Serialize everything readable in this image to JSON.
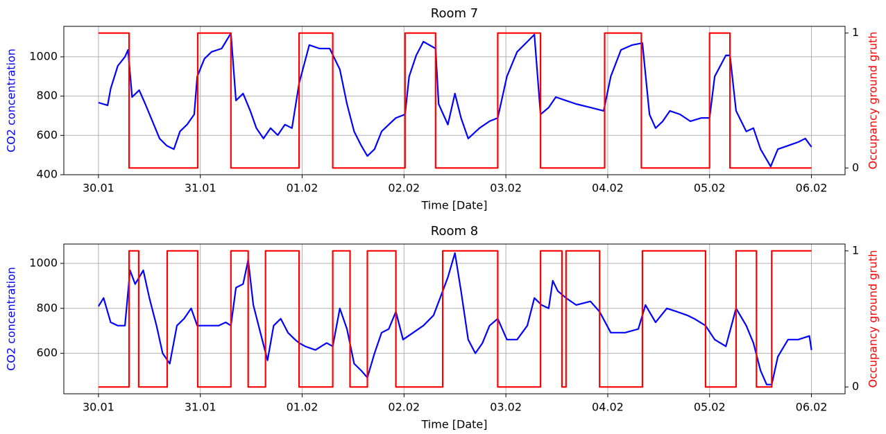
{
  "chart_data": [
    {
      "type": "line",
      "title": "Room 7",
      "x_label": "Time [Date]",
      "y_label": "CO2 concentration",
      "y2_label": "Occupancy ground gruth",
      "grid": true,
      "xlim": [
        -0.34,
        7.33
      ],
      "xticks": [
        {
          "value": 0,
          "label": "30.01"
        },
        {
          "value": 1,
          "label": "31.01"
        },
        {
          "value": 2,
          "label": "01.02"
        },
        {
          "value": 3,
          "label": "02.02"
        },
        {
          "value": 4,
          "label": "03.02"
        },
        {
          "value": 5,
          "label": "04.02"
        },
        {
          "value": 6,
          "label": "05.02"
        },
        {
          "value": 7,
          "label": "06.02"
        }
      ],
      "ylim": [
        400,
        1155
      ],
      "yticks": [
        400,
        600,
        800,
        1000
      ],
      "y2lim": [
        -0.05,
        1.05
      ],
      "y2ticks": [
        0,
        1
      ],
      "series": [
        {
          "color": "#0000ff",
          "x": [
            0,
            0.09,
            0.12,
            0.19,
            0.26,
            0.29,
            0.33,
            0.4,
            0.46,
            0.53,
            0.6,
            0.67,
            0.74,
            0.8,
            0.87,
            0.94,
            0.97,
            1.04,
            1.11,
            1.21,
            1.3,
            1.35,
            1.42,
            1.49,
            1.55,
            1.62,
            1.69,
            1.76,
            1.83,
            1.9,
            1.97,
            2.07,
            2.17,
            2.27,
            2.37,
            2.44,
            2.51,
            2.58,
            2.64,
            2.71,
            2.78,
            2.85,
            2.92,
            3.01,
            3.05,
            3.12,
            3.19,
            3.31,
            3.34,
            3.43,
            3.5,
            3.56,
            3.63,
            3.74,
            3.84,
            3.92,
            4.01,
            4.11,
            4.21,
            4.28,
            4.34,
            4.42,
            4.49,
            4.59,
            4.69,
            4.83,
            4.96,
            5.03,
            5.13,
            5.24,
            5.34,
            5.41,
            5.47,
            5.54,
            5.61,
            5.71,
            5.81,
            5.92,
            6.0,
            6.05,
            6.16,
            6.2,
            6.26,
            6.36,
            6.43,
            6.5,
            6.6,
            6.67,
            6.77,
            6.87,
            6.94,
            7.0
          ],
          "values": [
            767,
            753,
            838,
            954,
            1000,
            1035,
            795,
            830,
            760,
            672,
            584,
            548,
            530,
            620,
            655,
            707,
            900,
            990,
            1025,
            1042,
            1120,
            778,
            813,
            725,
            637,
            584,
            637,
            601,
            655,
            637,
            865,
            1060,
            1042,
            1042,
            936,
            760,
            620,
            548,
            495,
            530,
            620,
            655,
            689,
            707,
            900,
            1007,
            1077,
            1042,
            760,
            655,
            813,
            689,
            584,
            637,
            672,
            689,
            900,
            1025,
            1077,
            1113,
            707,
            742,
            795,
            777,
            760,
            742,
            725,
            900,
            1035,
            1060,
            1070,
            707,
            637,
            672,
            725,
            707,
            672,
            689,
            689,
            900,
            1007,
            1007,
            725,
            620,
            637,
            530,
            442,
            530,
            548,
            566,
            584,
            541
          ]
        },
        {
          "color": "#ff0000",
          "axis": "y2",
          "x": [
            0,
            0.3,
            0.3,
            0.975,
            0.975,
            1.3,
            1.3,
            1.97,
            1.97,
            2.3,
            2.3,
            3.01,
            3.01,
            3.31,
            3.31,
            3.92,
            3.92,
            4.34,
            4.34,
            4.97,
            4.97,
            5.33,
            5.33,
            6.0,
            6.0,
            6.2,
            6.2,
            7.0
          ],
          "values": [
            1,
            1,
            0,
            0,
            1,
            1,
            0,
            0,
            1,
            1,
            0,
            0,
            1,
            1,
            0,
            0,
            1,
            1,
            0,
            0,
            1,
            1,
            0,
            0,
            1,
            1,
            0,
            0
          ]
        }
      ]
    },
    {
      "type": "line",
      "title": "Room 8",
      "x_label": "Time [Date]",
      "y_label": "CO2 concentration",
      "y2_label": "Occupancy ground gruth",
      "grid": true,
      "xlim": [
        -0.34,
        7.33
      ],
      "xticks": [
        {
          "value": 0,
          "label": "30.01"
        },
        {
          "value": 1,
          "label": "31.01"
        },
        {
          "value": 2,
          "label": "01.02"
        },
        {
          "value": 3,
          "label": "02.02"
        },
        {
          "value": 4,
          "label": "03.02"
        },
        {
          "value": 5,
          "label": "04.02"
        },
        {
          "value": 6,
          "label": "05.02"
        },
        {
          "value": 7,
          "label": "06.02"
        }
      ],
      "ylim": [
        420,
        1086
      ],
      "yticks": [
        600,
        800,
        1000
      ],
      "y2lim": [
        -0.05,
        1.05
      ],
      "y2ticks": [
        0,
        1
      ],
      "series": [
        {
          "color": "#0000ff",
          "x": [
            0,
            0.05,
            0.12,
            0.19,
            0.26,
            0.31,
            0.36,
            0.4,
            0.44,
            0.5,
            0.57,
            0.63,
            0.7,
            0.77,
            0.84,
            0.91,
            0.97,
            1.08,
            1.18,
            1.25,
            1.3,
            1.35,
            1.42,
            1.47,
            1.52,
            1.59,
            1.66,
            1.72,
            1.79,
            1.86,
            1.93,
            1.97,
            2.03,
            2.13,
            2.24,
            2.3,
            2.37,
            2.44,
            2.51,
            2.58,
            2.64,
            2.71,
            2.78,
            2.85,
            2.92,
            2.99,
            3.09,
            3.19,
            3.29,
            3.38,
            3.43,
            3.5,
            3.56,
            3.63,
            3.7,
            3.77,
            3.84,
            3.92,
            4.01,
            4.11,
            4.21,
            4.28,
            4.35,
            4.42,
            4.46,
            4.51,
            4.59,
            4.69,
            4.83,
            4.92,
            5.03,
            5.17,
            5.3,
            5.37,
            5.47,
            5.58,
            5.68,
            5.78,
            5.85,
            5.96,
            6.05,
            6.16,
            6.26,
            6.36,
            6.43,
            6.5,
            6.56,
            6.61,
            6.67,
            6.77,
            6.87,
            6.98,
            7.0
          ],
          "values": [
            809,
            846,
            738,
            723,
            723,
            969,
            908,
            938,
            969,
            846,
            723,
            600,
            554,
            723,
            754,
            800,
            723,
            723,
            723,
            738,
            723,
            892,
            908,
            1015,
            815,
            692,
            569,
            723,
            754,
            692,
            661,
            646,
            631,
            615,
            646,
            631,
            800,
            708,
            554,
            523,
            492,
            600,
            692,
            708,
            785,
            661,
            692,
            723,
            769,
            877,
            938,
            1046,
            877,
            661,
            600,
            646,
            723,
            754,
            661,
            661,
            723,
            846,
            815,
            800,
            923,
            877,
            846,
            815,
            831,
            785,
            692,
            692,
            708,
            815,
            738,
            800,
            785,
            769,
            754,
            723,
            661,
            631,
            800,
            723,
            646,
            523,
            461,
            461,
            585,
            661,
            661,
            677,
            615
          ]
        },
        {
          "color": "#ff0000",
          "axis": "y2",
          "x": [
            0,
            0.3,
            0.3,
            0.395,
            0.395,
            0.675,
            0.675,
            0.975,
            0.975,
            1.3,
            1.3,
            1.47,
            1.47,
            1.64,
            1.64,
            1.97,
            1.97,
            2.3,
            2.3,
            2.47,
            2.47,
            2.64,
            2.64,
            2.92,
            2.92,
            3.38,
            3.38,
            3.92,
            3.92,
            4.34,
            4.34,
            4.55,
            4.55,
            4.59,
            4.59,
            4.92,
            4.92,
            5.34,
            5.34,
            5.96,
            5.96,
            6.26,
            6.26,
            6.46,
            6.46,
            6.61,
            6.61,
            7.0
          ],
          "values": [
            0,
            0,
            1,
            1,
            0,
            0,
            1,
            1,
            0,
            0,
            1,
            1,
            0,
            0,
            1,
            1,
            0,
            0,
            1,
            1,
            0,
            0,
            1,
            1,
            0,
            0,
            1,
            1,
            0,
            0,
            1,
            1,
            0,
            0,
            1,
            1,
            0,
            0,
            1,
            1,
            0,
            0,
            1,
            1,
            0,
            0,
            1,
            1
          ]
        }
      ]
    }
  ]
}
